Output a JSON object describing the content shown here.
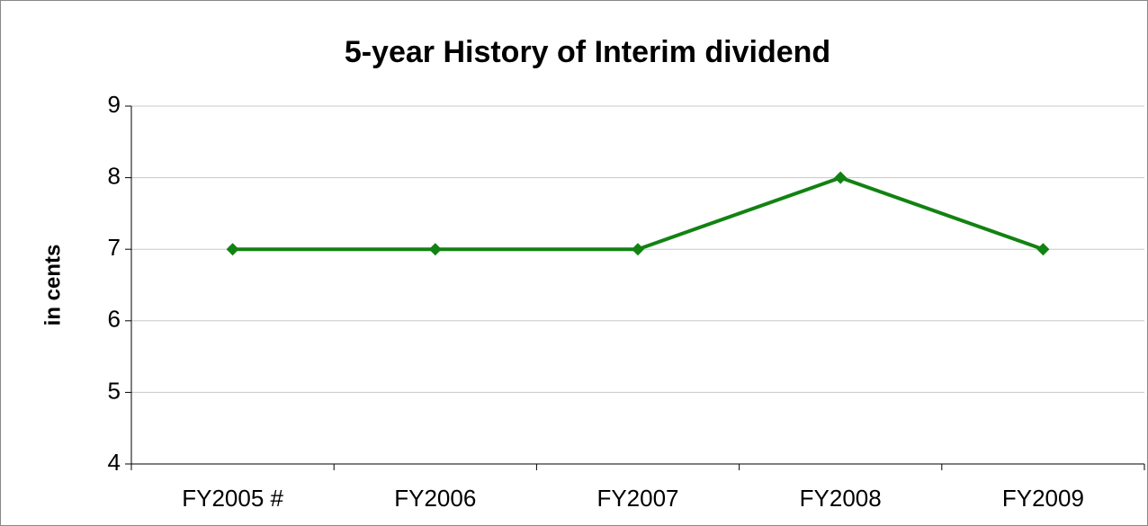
{
  "chart_data": {
    "type": "line",
    "title": "5-year History of Interim dividend",
    "y_label": "in cents",
    "categories": [
      "FY2005 #",
      "FY2006",
      "FY2007",
      "FY2008",
      "FY2009"
    ],
    "series": [
      {
        "name": "Interim dividend",
        "color": "#128212",
        "values": [
          7,
          7,
          7,
          8,
          7
        ]
      }
    ],
    "ylim": [
      4,
      9
    ],
    "yticks": [
      4,
      5,
      6,
      7,
      8,
      9
    ],
    "grid": true
  }
}
